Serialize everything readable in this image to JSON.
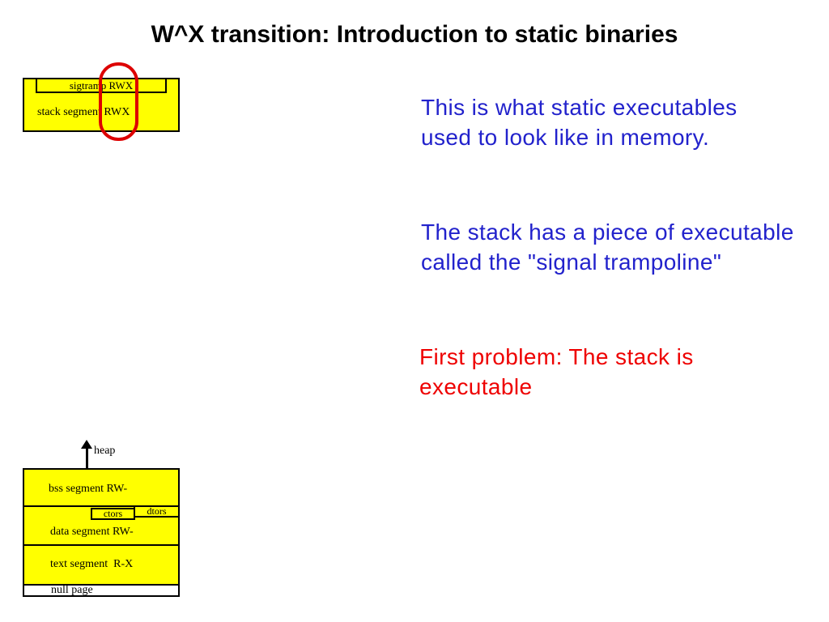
{
  "slide": {
    "title": "W^X transition: Introduction to static binaries",
    "colors": {
      "segment_fill": "#ffff00",
      "border": "#000000",
      "highlight_oval": "#dd0000",
      "annotation_blue": "#2222cc",
      "annotation_red": "#ee0000"
    }
  },
  "stack_diagram": {
    "sigtramp_label": "sigtramp RWX",
    "stack_label": "stack segment RWX"
  },
  "memory_diagram": {
    "heap_label": "heap",
    "segments": [
      {
        "label": "bss segment RW-"
      },
      {
        "label": "data segment RW-"
      },
      {
        "label": "text segment  R-X"
      },
      {
        "label": "null page"
      }
    ],
    "ctors_label": "ctors",
    "dtors_label": "dtors"
  },
  "annotations": [
    {
      "text": "This is what static executables\nused to look like in memory.",
      "color": "blue"
    },
    {
      "text": "The stack has a piece of executable\ncalled the \"signal trampoline\"",
      "color": "blue"
    },
    {
      "text": "First problem: The stack is\nexecutable",
      "color": "red"
    }
  ]
}
